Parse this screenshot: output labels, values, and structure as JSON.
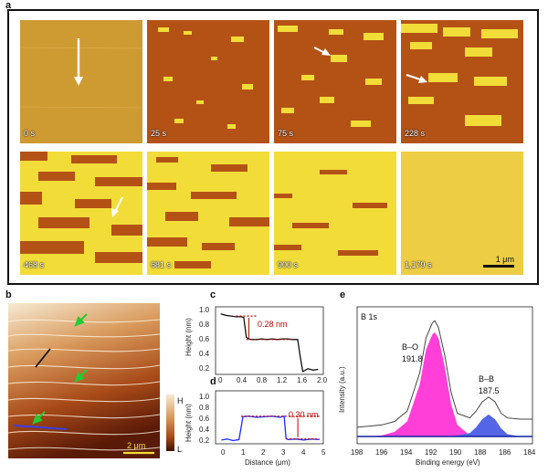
{
  "panel_labels": {
    "a": "a",
    "b": "b",
    "c": "c",
    "d": "d",
    "e": "e"
  },
  "panel_a": {
    "times": [
      "0 s",
      "25 s",
      "75 s",
      "228 s",
      "468 s",
      "681 s",
      "900 s",
      "1,179 s"
    ],
    "scale_bar": "1 μm"
  },
  "panel_b": {
    "scale_bar": "2 μm",
    "colorbar_high": "H",
    "colorbar_low": "L"
  },
  "panel_c": {
    "annotation": "0.28 nm",
    "ylabel": "Height (nm)",
    "yticks": [
      "1.0",
      "0.8",
      "0.6",
      "0.4",
      "0.2"
    ],
    "xticks": [
      "0",
      "0.4",
      "0.8",
      "1.2",
      "1.6",
      "2.0"
    ]
  },
  "panel_d": {
    "annotation": "0.30 nm",
    "ylabel": "Height (nm)",
    "yticks": [
      "1.0",
      "0.8",
      "0.6",
      "0.4",
      "0.2"
    ],
    "xticks": [
      "0",
      "1",
      "2",
      "3",
      "4",
      "5"
    ],
    "xlabel": "Distance (μm)"
  },
  "panel_e": {
    "title": "B 1s",
    "peak1_label": "B–O",
    "peak1_value": "191.8",
    "peak2_label": "B–B",
    "peak2_value": "187.5",
    "ylabel": "Intensity (a.u.)",
    "xlabel": "Binding energy (eV)",
    "xticks": [
      "198",
      "196",
      "194",
      "192",
      "190",
      "188",
      "186",
      "184"
    ]
  },
  "chart_data": [
    {
      "type": "line",
      "title": "c",
      "xlabel": "",
      "ylabel": "Height (nm)",
      "xlim": [
        -0.1,
        2.0
      ],
      "ylim": [
        0.1,
        1.05
      ],
      "x": [
        0.0,
        0.1,
        0.2,
        0.3,
        0.4,
        0.45,
        0.5,
        0.55,
        0.6,
        0.7,
        0.8,
        0.9,
        1.0,
        1.1,
        1.2,
        1.3,
        1.4,
        1.5,
        1.55,
        1.6,
        1.7,
        1.8,
        1.9
      ],
      "series": [
        {
          "name": "profile",
          "values": [
            0.95,
            0.93,
            0.92,
            0.91,
            0.91,
            0.9,
            0.62,
            0.6,
            0.59,
            0.59,
            0.6,
            0.59,
            0.6,
            0.59,
            0.6,
            0.6,
            0.59,
            0.59,
            0.35,
            0.14,
            0.18,
            0.16,
            0.17
          ]
        }
      ],
      "step_height_nm": 0.28
    },
    {
      "type": "line",
      "title": "d",
      "xlabel": "Distance (μm)",
      "ylabel": "Height (nm)",
      "xlim": [
        -0.3,
        5.2
      ],
      "ylim": [
        0.0,
        1.0
      ],
      "x": [
        0.0,
        0.3,
        0.6,
        0.9,
        1.0,
        1.1,
        1.4,
        1.8,
        2.2,
        2.6,
        3.0,
        3.2,
        3.3,
        3.4,
        3.8,
        4.2,
        4.6,
        5.0
      ],
      "series": [
        {
          "name": "profile",
          "values": [
            0.07,
            0.09,
            0.06,
            0.08,
            0.3,
            0.51,
            0.52,
            0.5,
            0.51,
            0.52,
            0.5,
            0.52,
            0.1,
            0.08,
            0.09,
            0.07,
            0.09,
            0.08
          ]
        }
      ],
      "step_height_nm": 0.3
    },
    {
      "type": "line",
      "title": "B 1s",
      "xlabel": "Binding energy (eV)",
      "ylabel": "Intensity (a.u.)",
      "xlim": [
        198,
        184
      ],
      "x": [
        198,
        197,
        196,
        195,
        194,
        193,
        192.5,
        192,
        191.8,
        191.5,
        191,
        190.5,
        190,
        189,
        188.5,
        188,
        187.5,
        187,
        186.5,
        186,
        185,
        184
      ],
      "series": [
        {
          "name": "envelope",
          "values": [
            0.08,
            0.09,
            0.1,
            0.13,
            0.22,
            0.55,
            0.85,
            0.98,
            1.0,
            0.94,
            0.7,
            0.38,
            0.2,
            0.16,
            0.22,
            0.3,
            0.34,
            0.3,
            0.2,
            0.16,
            0.15,
            0.15
          ]
        },
        {
          "name": "B–O",
          "values": [
            0,
            0,
            0.01,
            0.04,
            0.13,
            0.45,
            0.75,
            0.88,
            0.9,
            0.85,
            0.6,
            0.28,
            0.1,
            0.01,
            0,
            0,
            0,
            0,
            0,
            0,
            0,
            0
          ]
        },
        {
          "name": "B–B",
          "values": [
            0,
            0,
            0,
            0,
            0,
            0,
            0,
            0,
            0,
            0,
            0,
            0,
            0.01,
            0.03,
            0.08,
            0.15,
            0.19,
            0.15,
            0.07,
            0.02,
            0,
            0
          ]
        }
      ],
      "peaks": [
        {
          "label": "B–O",
          "position_eV": 191.8
        },
        {
          "label": "B–B",
          "position_eV": 187.5
        }
      ]
    }
  ]
}
